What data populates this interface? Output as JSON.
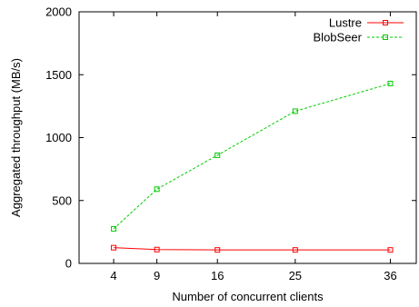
{
  "chart_data": {
    "type": "line",
    "x": [
      4,
      9,
      16,
      25,
      36
    ],
    "x_tick_labels": [
      "4",
      "9",
      "16",
      "25",
      "36"
    ],
    "series": [
      {
        "name": "Lustre",
        "values": [
          125,
          110,
          107,
          107,
          107
        ],
        "color": "#ff0000",
        "style": "solid",
        "marker": "square"
      },
      {
        "name": "BlobSeer",
        "values": [
          275,
          590,
          860,
          1210,
          1430
        ],
        "color": "#00cc00",
        "style": "dashed",
        "marker": "square"
      }
    ],
    "xlabel": "Number of concurrent clients",
    "ylabel": "Aggregated throughput (MB/s)",
    "xlim": [
      0,
      39
    ],
    "ylim": [
      0,
      2000
    ],
    "y_ticks": [
      0,
      500,
      1000,
      1500,
      2000
    ],
    "legend_position": "top-right",
    "grid": false
  }
}
